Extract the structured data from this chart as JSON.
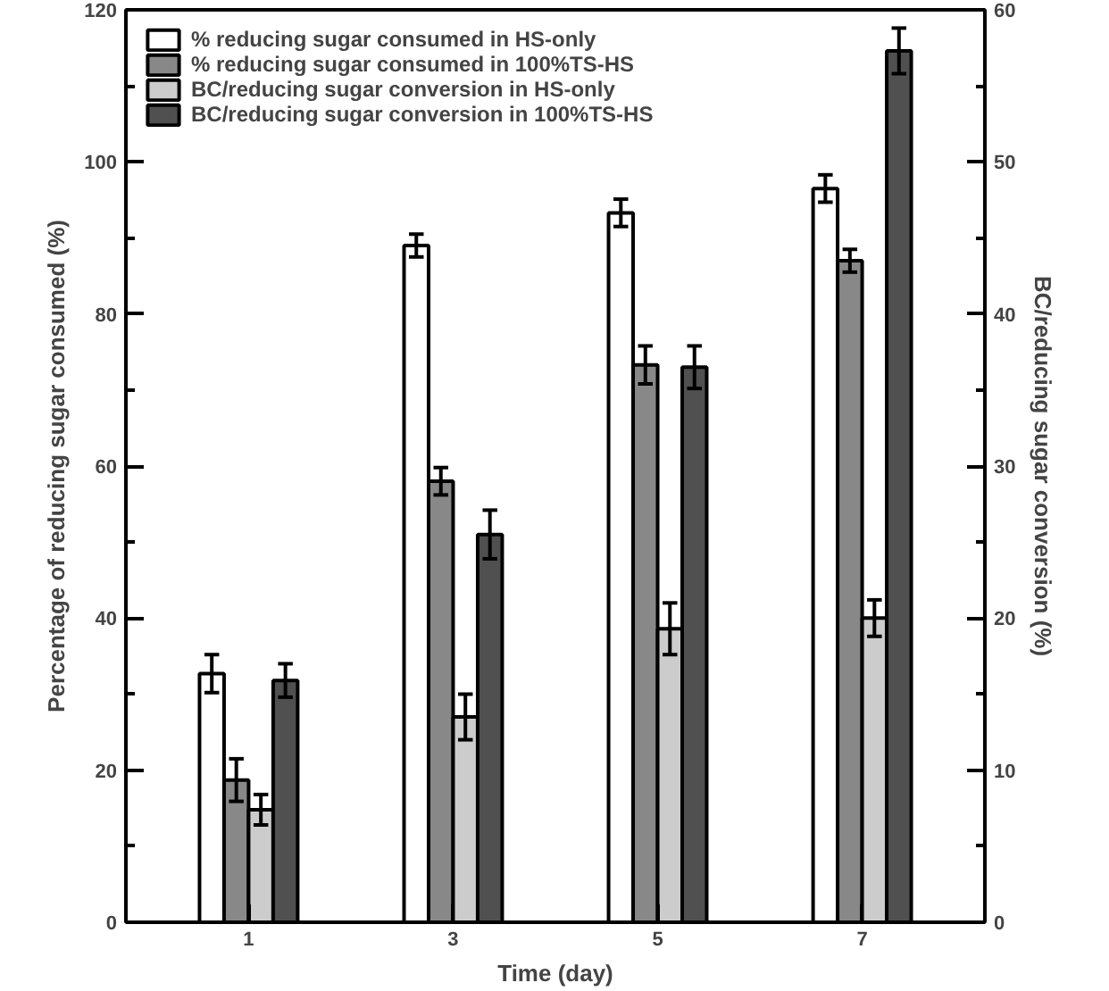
{
  "chart_data": {
    "type": "bar",
    "xlabel": "Time (day)",
    "ylabel": "Percentage of reducing sugar consumed (%)",
    "y2label": "BC/reducing sugar conversion (%)",
    "categories": [
      "1",
      "3",
      "5",
      "7"
    ],
    "series": [
      {
        "name": "% reducing sugar consumed in HS-only",
        "color": "#ffffff",
        "values": [
          32.7,
          89,
          93.3,
          96.5
        ],
        "errors": [
          2.5,
          1.5,
          1.8,
          1.8
        ]
      },
      {
        "name": "% reducing sugar consumed in 100%TS-HS",
        "color": "#888888",
        "values": [
          18.7,
          58,
          73.3,
          87
        ],
        "errors": [
          2.8,
          1.8,
          2.5,
          1.5
        ]
      },
      {
        "name": "BC/reducing sugar conversion in HS-only",
        "color": "#cccccc",
        "values": [
          7.4,
          13.5,
          19.3,
          20
        ],
        "errors": [
          1,
          1.5,
          1.7,
          1.2
        ],
        "axis": "y2"
      },
      {
        "name": "BC/reducing sugar conversion in 100%TS-HS",
        "color": "#505050",
        "values": [
          15.9,
          25.5,
          36.5,
          57.3
        ],
        "errors": [
          1.1,
          1.6,
          1.4,
          1.5
        ],
        "axis": "y2"
      }
    ],
    "ylim": [
      0,
      120
    ],
    "yticks": [
      0,
      {
        "value": 10,
        "label": null
      },
      20,
      {
        "value": 30,
        "label": null
      },
      40,
      {
        "value": 50,
        "label": null
      },
      60,
      {
        "value": 70,
        "label": null
      },
      80,
      {
        "value": 90,
        "label": null
      },
      100,
      {
        "value": 110,
        "label": null
      },
      120
    ],
    "y2lim": [
      0,
      60
    ],
    "y2ticks": [
      0,
      {
        "value": 5,
        "label": null
      },
      10,
      {
        "value": 15,
        "label": null
      },
      20,
      {
        "value": 25,
        "label": null
      },
      30,
      {
        "value": 35,
        "label": null
      },
      40,
      {
        "value": 45,
        "label": null
      },
      50,
      {
        "value": 55,
        "label": null
      },
      60
    ],
    "grid": false,
    "legend": "top left"
  }
}
